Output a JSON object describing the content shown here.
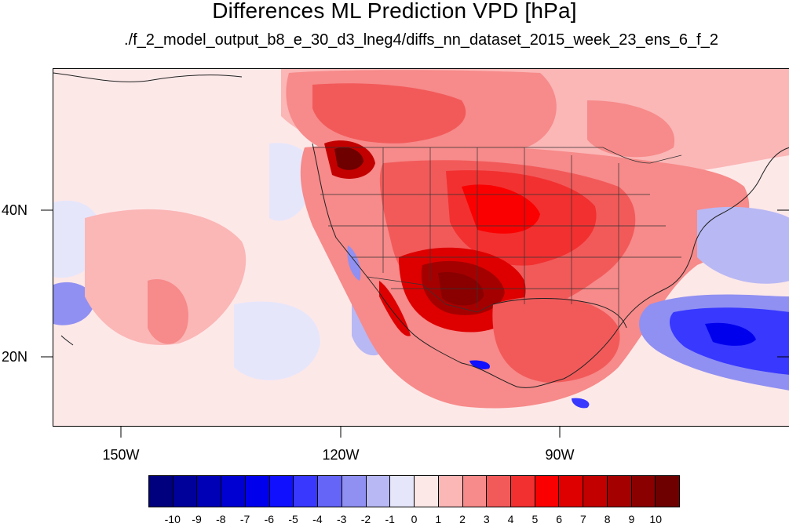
{
  "title": "Differences ML Prediction VPD [hPa]",
  "subtitle": "./f_2_model_output_b8_e_30_d3_lneg4/diffs_nn_dataset_2015_week_23_ens_6_f_2",
  "map": {
    "region": "North America and eastern Pacific",
    "lat_range": [
      11,
      59
    ],
    "lon_range": [
      -159,
      -59
    ],
    "lat_ticks": [
      "40N",
      "20N"
    ],
    "lon_ticks": [
      "150W",
      "120W",
      "90W"
    ],
    "features": [
      "coastlines",
      "US state borders",
      "Canada/Mexico borders"
    ]
  },
  "colorbar": {
    "labels": [
      "-10",
      "-9",
      "-8",
      "-7",
      "-6",
      "-5",
      "-4",
      "-3",
      "-2",
      "-1",
      "0",
      "1",
      "2",
      "3",
      "4",
      "5",
      "6",
      "7",
      "8",
      "9",
      "10"
    ],
    "colors": [
      "#00007f",
      "#00009b",
      "#0000b6",
      "#0000d2",
      "#0000ed",
      "#1010ff",
      "#3838ff",
      "#6565f7",
      "#9090f2",
      "#b8b8f4",
      "#e6e6fb",
      "#fde8e8",
      "#fbb6b6",
      "#f78a8a",
      "#f25a5a",
      "#f23030",
      "#fb0000",
      "#de0000",
      "#c20000",
      "#a50000",
      "#8a0000",
      "#6e0000"
    ]
  },
  "chart_data": {
    "type": "heatmap",
    "title": "Differences ML Prediction VPD [hPa]",
    "subtitle": "./f_2_model_output_b8_e_30_d3_lneg4/diffs_nn_dataset_2015_week_23_ens_6_f_2",
    "x_ticks": [
      "150W",
      "120W",
      "90W"
    ],
    "y_ticks": [
      "40N",
      "20N"
    ],
    "xlim": [
      -159,
      -59
    ],
    "ylim": [
      11,
      59
    ],
    "color_levels": [
      -10,
      -9,
      -8,
      -7,
      -6,
      -5,
      -4,
      -3,
      -2,
      -1,
      0,
      1,
      2,
      3,
      4,
      5,
      6,
      7,
      8,
      9,
      10
    ],
    "regions": [
      {
        "name": "pacific-background",
        "level": 0.5
      },
      {
        "name": "canada-positive",
        "level": 3.5
      },
      {
        "name": "great-plains-high",
        "level": 5
      },
      {
        "name": "southern-plains-max",
        "level": 8
      },
      {
        "name": "pacific-northwest-max",
        "level": 9
      },
      {
        "name": "gulf-positive",
        "level": 4
      },
      {
        "name": "atlantic-negative",
        "level": -4
      },
      {
        "name": "caribbean-negative",
        "level": -5.5
      },
      {
        "name": "pacific-west-negative",
        "level": -2.5
      }
    ]
  }
}
